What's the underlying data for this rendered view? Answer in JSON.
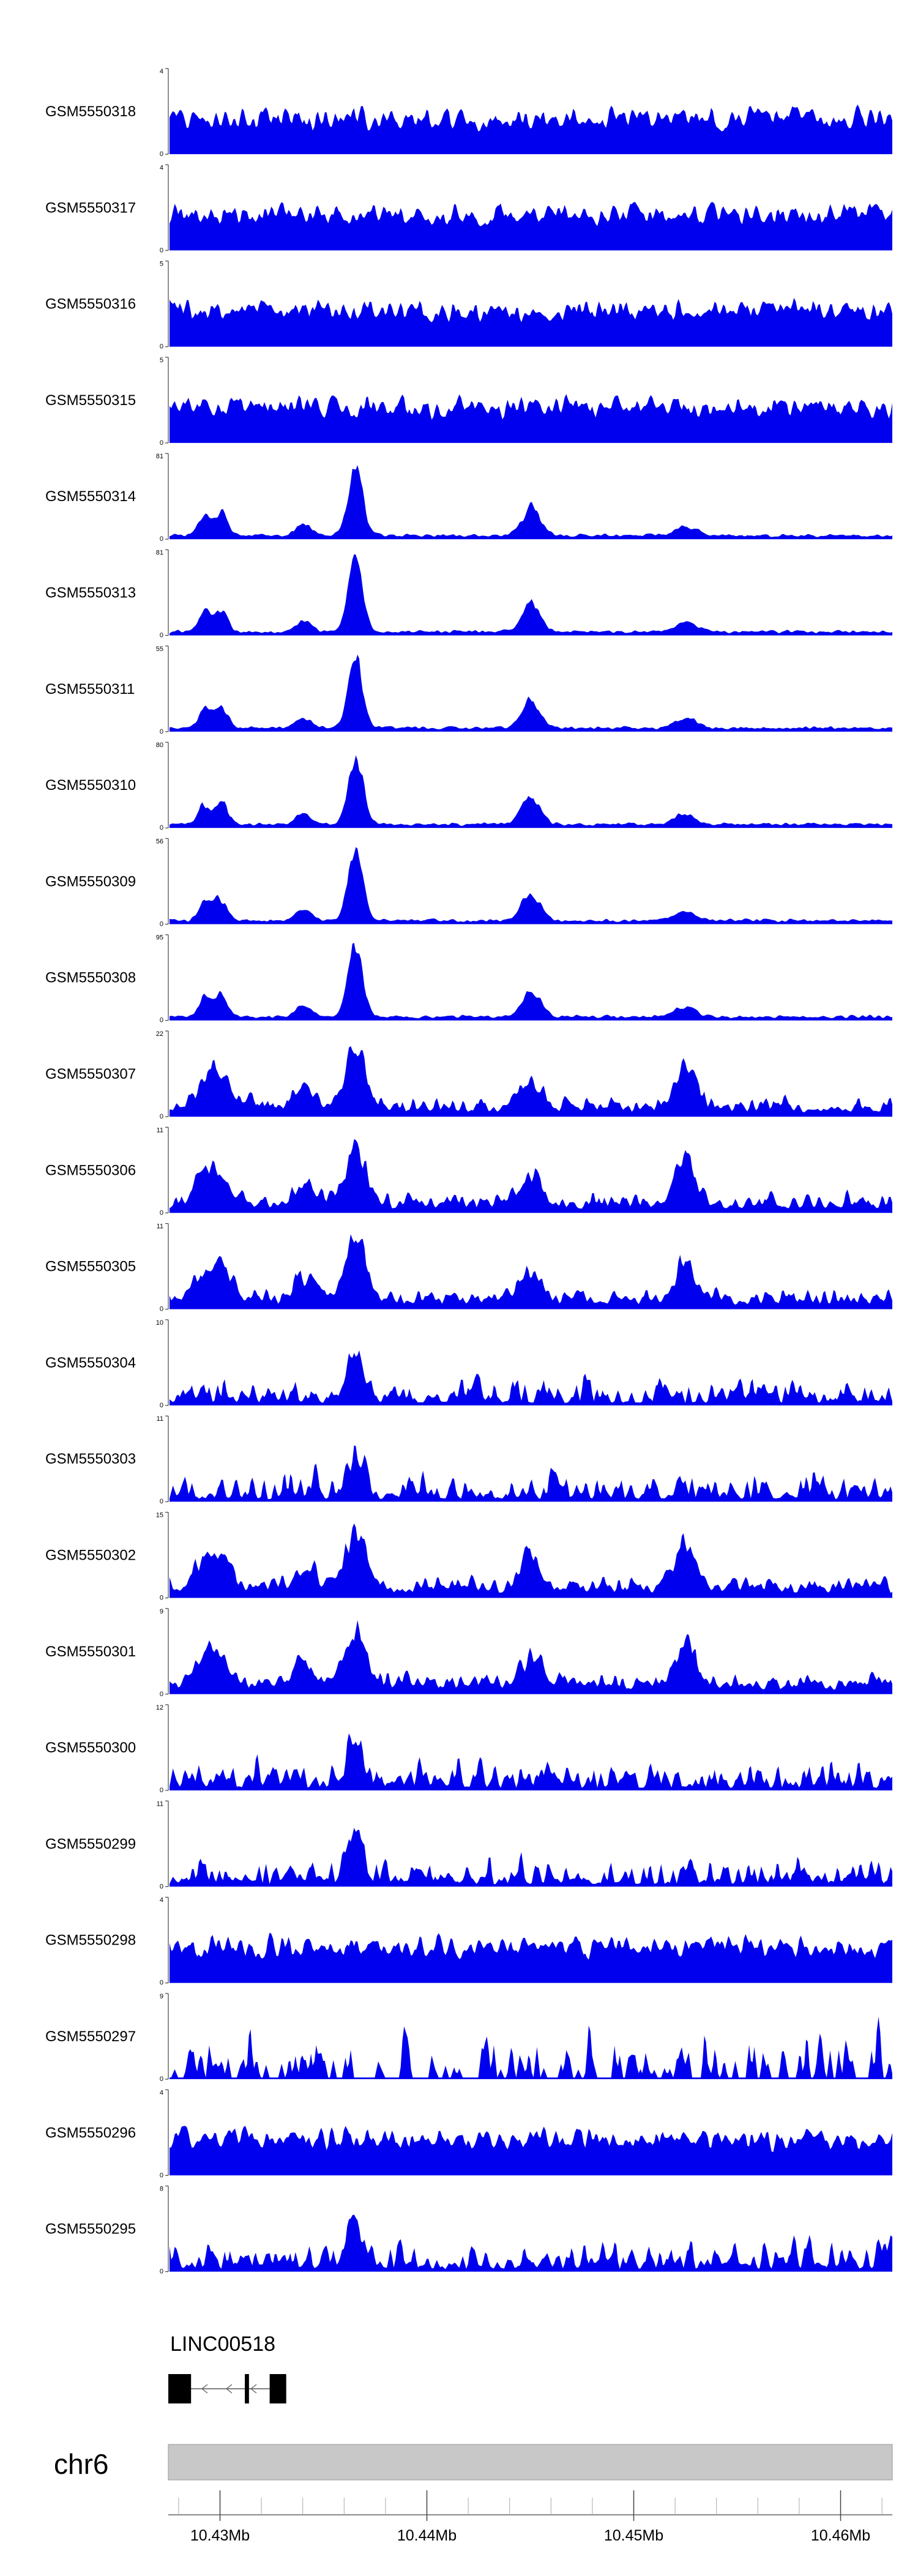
{
  "chart_data": {
    "type": "area",
    "x_axis": {
      "range_mb": [
        10.4275,
        10.4625
      ],
      "ticks": [
        {
          "value": 10.43,
          "label": "10.43Mb"
        },
        {
          "value": 10.44,
          "label": "10.44Mb"
        },
        {
          "value": 10.45,
          "label": "10.45Mb"
        },
        {
          "value": 10.46,
          "label": "10.46Mb"
        }
      ]
    },
    "chromosome": "chr6",
    "peak_centers_mb": [
      10.4292,
      10.43,
      10.434,
      10.4365,
      10.445,
      10.4525
    ],
    "tracks": [
      {
        "name": "GSM5550318",
        "ymax_label": "4",
        "ymin_label": "0",
        "ymax": 4,
        "profile": "noise",
        "seed": 318
      },
      {
        "name": "GSM5550317",
        "ymax_label": "4",
        "ymin_label": "0",
        "ymax": 4,
        "profile": "noise",
        "seed": 317
      },
      {
        "name": "GSM5550316",
        "ymax_label": "5",
        "ymin_label": "0",
        "ymax": 5,
        "profile": "noise",
        "seed": 316
      },
      {
        "name": "GSM5550315",
        "ymax_label": "5",
        "ymin_label": "0",
        "ymax": 5,
        "profile": "noise",
        "seed": 315
      },
      {
        "name": "GSM5550314",
        "ymax_label": "81",
        "ymin_label": "0",
        "ymax": 81,
        "profile": "peaks",
        "seed": 314
      },
      {
        "name": "GSM5550313",
        "ymax_label": "81",
        "ymin_label": "0",
        "ymax": 81,
        "profile": "peaks",
        "seed": 313
      },
      {
        "name": "GSM5550311",
        "ymax_label": "55",
        "ymin_label": "0",
        "ymax": 55,
        "profile": "peaks",
        "seed": 311
      },
      {
        "name": "GSM5550310",
        "ymax_label": "80",
        "ymin_label": "0",
        "ymax": 80,
        "profile": "peaks",
        "seed": 310
      },
      {
        "name": "GSM5550309",
        "ymax_label": "56",
        "ymin_label": "0",
        "ymax": 56,
        "profile": "peaks",
        "seed": 309
      },
      {
        "name": "GSM5550308",
        "ymax_label": "95",
        "ymin_label": "0",
        "ymax": 95,
        "profile": "peaks",
        "seed": 308
      },
      {
        "name": "GSM5550307",
        "ymax_label": "22",
        "ymin_label": "0",
        "ymax": 22,
        "profile": "mid",
        "seed": 307
      },
      {
        "name": "GSM5550306",
        "ymax_label": "11",
        "ymin_label": "0",
        "ymax": 11,
        "profile": "mid",
        "seed": 306
      },
      {
        "name": "GSM5550305",
        "ymax_label": "11",
        "ymin_label": "0",
        "ymax": 11,
        "profile": "mid",
        "seed": 305
      },
      {
        "name": "GSM5550304",
        "ymax_label": "10",
        "ymin_label": "0",
        "ymax": 10,
        "profile": "spiky",
        "seed": 304
      },
      {
        "name": "GSM5550303",
        "ymax_label": "11",
        "ymin_label": "0",
        "ymax": 11,
        "profile": "spiky",
        "seed": 303
      },
      {
        "name": "GSM5550302",
        "ymax_label": "15",
        "ymin_label": "0",
        "ymax": 15,
        "profile": "mid",
        "seed": 302
      },
      {
        "name": "GSM5550301",
        "ymax_label": "9",
        "ymin_label": "0",
        "ymax": 9,
        "profile": "mid",
        "seed": 301
      },
      {
        "name": "GSM5550300",
        "ymax_label": "12",
        "ymin_label": "0",
        "ymax": 12,
        "profile": "spiky",
        "seed": 300
      },
      {
        "name": "GSM5550299",
        "ymax_label": "11",
        "ymin_label": "0",
        "ymax": 11,
        "profile": "spiky",
        "seed": 299
      },
      {
        "name": "GSM5550298",
        "ymax_label": "4",
        "ymin_label": "0",
        "ymax": 4,
        "profile": "noise",
        "seed": 298
      },
      {
        "name": "GSM5550297",
        "ymax_label": "9",
        "ymin_label": "0",
        "ymax": 9,
        "profile": "sparse",
        "seed": 297
      },
      {
        "name": "GSM5550296",
        "ymax_label": "4",
        "ymin_label": "0",
        "ymax": 4,
        "profile": "noise",
        "seed": 296
      },
      {
        "name": "GSM5550295",
        "ymax_label": "8",
        "ymin_label": "0",
        "ymax": 8,
        "profile": "spiky",
        "seed": 295
      }
    ],
    "gene": {
      "name": "LINC00518",
      "strand": "-",
      "exons_mb": [
        [
          10.4275,
          10.4286
        ],
        [
          10.4312,
          10.4314
        ],
        [
          10.4324,
          10.4332
        ]
      ],
      "span_mb": [
        10.4275,
        10.4332
      ]
    },
    "colors": {
      "signal": "#0000ee",
      "axis": "#444444",
      "ideogram": "#c8c8c8",
      "exon": "#000000"
    }
  }
}
